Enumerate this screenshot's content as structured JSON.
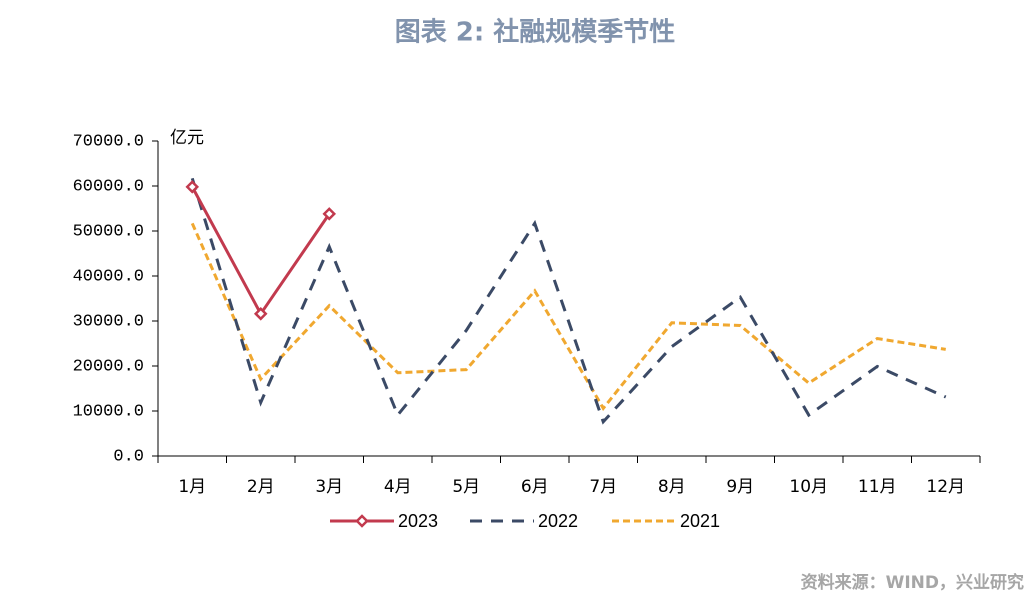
{
  "chart_data": {
    "type": "line",
    "title": "图表 2:  社融规模季节性",
    "y_unit": "亿元",
    "source": "资料来源：WIND，兴业研究",
    "categories": [
      "1月",
      "2月",
      "3月",
      "4月",
      "5月",
      "6月",
      "7月",
      "8月",
      "9月",
      "10月",
      "11月",
      "12月"
    ],
    "series": [
      {
        "name": "2023",
        "color": "#c23a4e",
        "style": "solid",
        "marker": "diamond",
        "values": [
          59800,
          31600,
          53800,
          null,
          null,
          null,
          null,
          null,
          null,
          null,
          null,
          null
        ]
      },
      {
        "name": "2022",
        "color": "#3b4a66",
        "style": "dashed",
        "values": [
          61700,
          11900,
          46500,
          9100,
          27900,
          51700,
          7600,
          24300,
          35300,
          9100,
          19900,
          13100
        ]
      },
      {
        "name": "2021",
        "color": "#f0a830",
        "style": "dotted",
        "values": [
          51700,
          17100,
          33400,
          18500,
          19200,
          36700,
          10600,
          29600,
          29000,
          16200,
          26100,
          23700
        ]
      }
    ],
    "ylim": [
      0,
      70000
    ],
    "yticks": [
      {
        "value": 0,
        "label": "0.0"
      },
      {
        "value": 10000,
        "label": "10000.0"
      },
      {
        "value": 20000,
        "label": "20000.0"
      },
      {
        "value": 30000,
        "label": "30000.0"
      },
      {
        "value": 40000,
        "label": "40000.0"
      },
      {
        "value": 50000,
        "label": "50000.0"
      },
      {
        "value": 60000,
        "label": "60000.0"
      },
      {
        "value": 70000,
        "label": "70000.0"
      }
    ],
    "grid": false,
    "legend": "bottom"
  }
}
